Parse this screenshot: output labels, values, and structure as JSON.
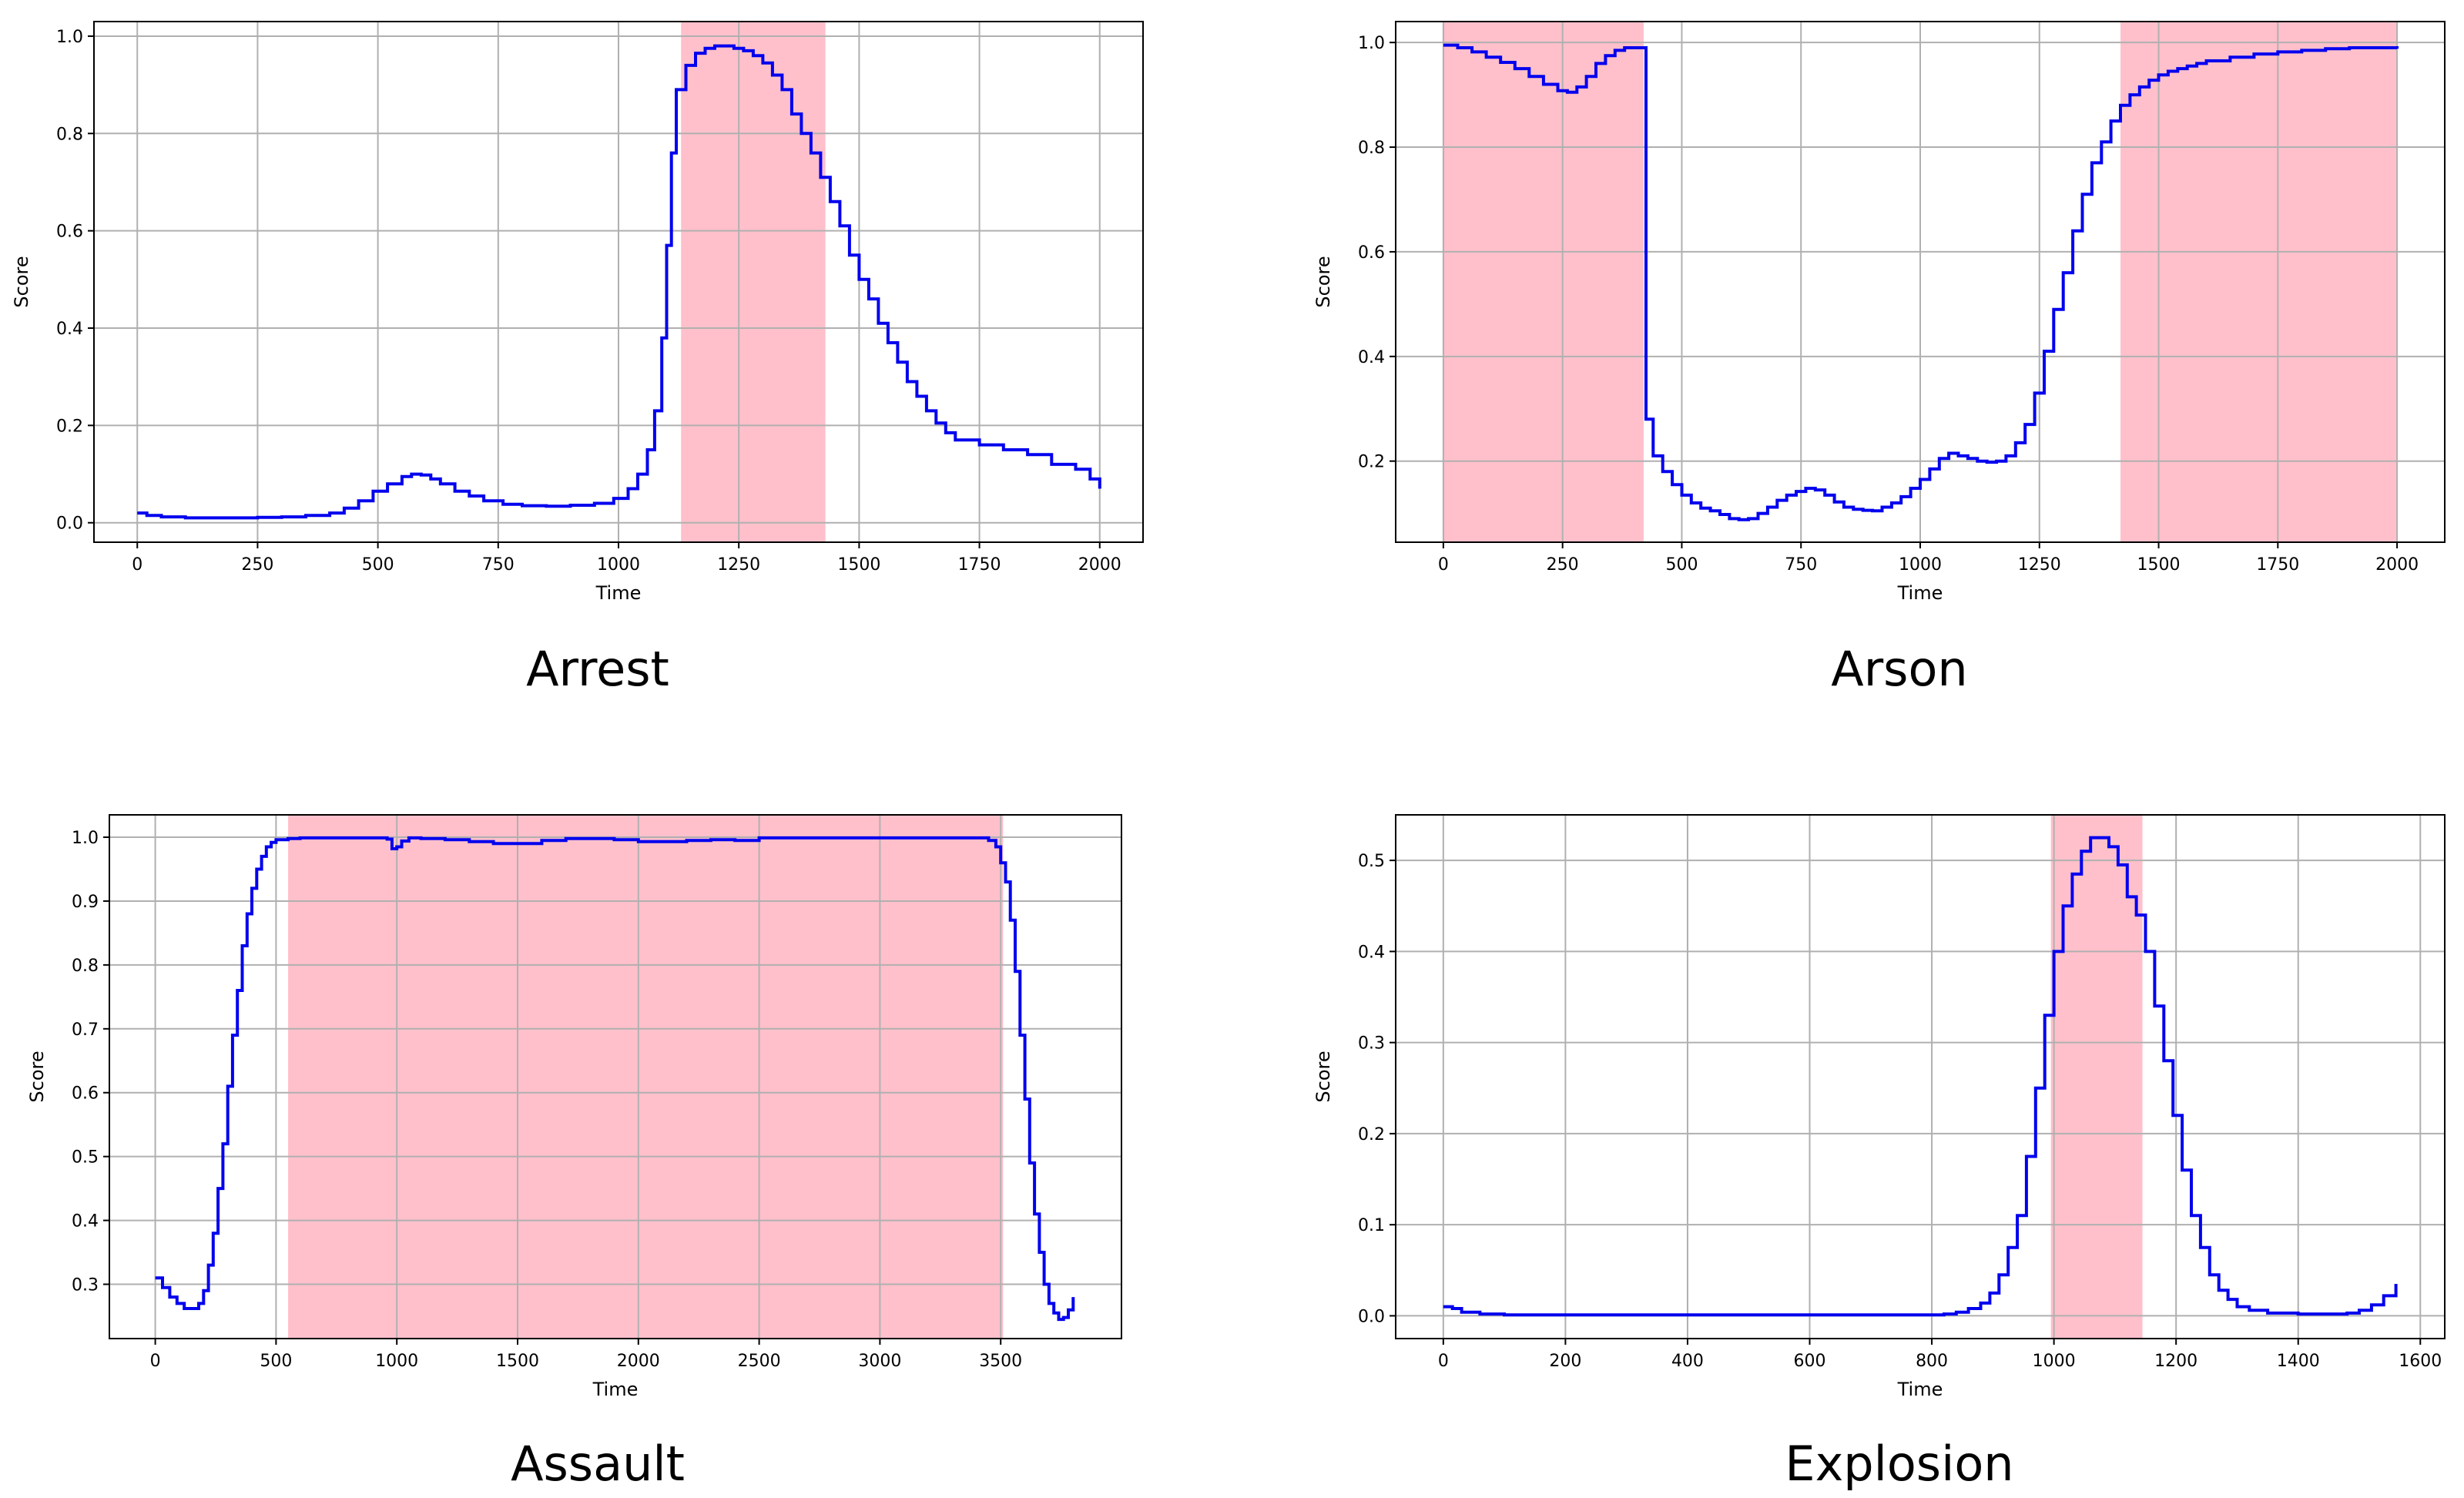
{
  "colors": {
    "line": "#0000ee",
    "shade": "#ffc0cb",
    "grid": "#b0b0b0",
    "axes": "#000000"
  },
  "chart_data": [
    {
      "type": "line",
      "caption": "Arrest",
      "xlabel": "Time",
      "ylabel": "Score",
      "xlim": [
        -90,
        2090
      ],
      "ylim": [
        -0.04,
        1.03
      ],
      "xticks": [
        0,
        250,
        500,
        750,
        1000,
        1250,
        1500,
        1750,
        2000
      ],
      "yticks": [
        0.0,
        0.2,
        0.4,
        0.6,
        0.8,
        1.0
      ],
      "ytick_labels": [
        "0.0",
        "0.2",
        "0.4",
        "0.6",
        "0.8",
        "1.0"
      ],
      "shaded_ranges": [
        [
          1130,
          1430
        ]
      ],
      "grid": true,
      "step": true,
      "series": [
        {
          "x": [
            0,
            20,
            50,
            100,
            150,
            200,
            250,
            300,
            350,
            400,
            430,
            460,
            490,
            520,
            550,
            570,
            590,
            610,
            630,
            660,
            690,
            720,
            760,
            800,
            850,
            900,
            950,
            990,
            1020,
            1040,
            1060,
            1075,
            1090,
            1100,
            1110,
            1120,
            1140,
            1160,
            1180,
            1200,
            1220,
            1240,
            1260,
            1280,
            1300,
            1320,
            1340,
            1360,
            1380,
            1400,
            1420,
            1440,
            1460,
            1480,
            1500,
            1520,
            1540,
            1560,
            1580,
            1600,
            1620,
            1640,
            1660,
            1680,
            1700,
            1750,
            1800,
            1850,
            1900,
            1950,
            1980,
            2000
          ],
          "y": [
            0.02,
            0.015,
            0.012,
            0.01,
            0.01,
            0.01,
            0.011,
            0.012,
            0.015,
            0.02,
            0.03,
            0.045,
            0.065,
            0.08,
            0.095,
            0.1,
            0.098,
            0.09,
            0.08,
            0.065,
            0.055,
            0.045,
            0.038,
            0.035,
            0.034,
            0.036,
            0.04,
            0.05,
            0.07,
            0.1,
            0.15,
            0.23,
            0.38,
            0.57,
            0.76,
            0.89,
            0.94,
            0.965,
            0.975,
            0.98,
            0.98,
            0.975,
            0.97,
            0.96,
            0.945,
            0.92,
            0.89,
            0.84,
            0.8,
            0.76,
            0.71,
            0.66,
            0.61,
            0.55,
            0.5,
            0.46,
            0.41,
            0.37,
            0.33,
            0.29,
            0.26,
            0.23,
            0.205,
            0.185,
            0.17,
            0.16,
            0.15,
            0.14,
            0.12,
            0.11,
            0.09,
            0.07
          ]
        }
      ]
    },
    {
      "type": "line",
      "caption": "Arson",
      "xlabel": "Time",
      "ylabel": "Score",
      "xlim": [
        -100,
        2100
      ],
      "ylim": [
        0.045,
        1.04
      ],
      "xticks": [
        0,
        250,
        500,
        750,
        1000,
        1250,
        1500,
        1750,
        2000
      ],
      "yticks": [
        0.2,
        0.4,
        0.6,
        0.8,
        1.0
      ],
      "ytick_labels": [
        "0.2",
        "0.4",
        "0.6",
        "0.8",
        "1.0"
      ],
      "shaded_ranges": [
        [
          0,
          420
        ],
        [
          1420,
          2000
        ]
      ],
      "grid": true,
      "step": true,
      "series": [
        {
          "x": [
            0,
            30,
            60,
            90,
            120,
            150,
            180,
            210,
            240,
            260,
            280,
            300,
            320,
            340,
            360,
            380,
            400,
            420,
            425,
            440,
            460,
            480,
            500,
            520,
            540,
            560,
            580,
            600,
            620,
            640,
            660,
            680,
            700,
            720,
            740,
            760,
            780,
            800,
            820,
            840,
            860,
            880,
            900,
            920,
            940,
            960,
            980,
            1000,
            1020,
            1040,
            1060,
            1080,
            1100,
            1120,
            1140,
            1160,
            1180,
            1200,
            1220,
            1240,
            1260,
            1280,
            1300,
            1320,
            1340,
            1360,
            1380,
            1400,
            1420,
            1440,
            1460,
            1480,
            1500,
            1520,
            1540,
            1560,
            1580,
            1600,
            1650,
            1700,
            1750,
            1800,
            1850,
            1900,
            1950,
            2000
          ],
          "y": [
            0.995,
            0.99,
            0.982,
            0.972,
            0.962,
            0.95,
            0.935,
            0.92,
            0.908,
            0.905,
            0.915,
            0.935,
            0.96,
            0.975,
            0.985,
            0.99,
            0.99,
            0.99,
            0.28,
            0.21,
            0.18,
            0.155,
            0.135,
            0.12,
            0.11,
            0.105,
            0.098,
            0.09,
            0.088,
            0.09,
            0.1,
            0.112,
            0.125,
            0.135,
            0.142,
            0.148,
            0.145,
            0.135,
            0.122,
            0.112,
            0.108,
            0.106,
            0.105,
            0.112,
            0.12,
            0.132,
            0.148,
            0.165,
            0.185,
            0.205,
            0.215,
            0.21,
            0.205,
            0.2,
            0.198,
            0.2,
            0.21,
            0.235,
            0.27,
            0.33,
            0.41,
            0.49,
            0.56,
            0.64,
            0.71,
            0.77,
            0.81,
            0.85,
            0.88,
            0.9,
            0.915,
            0.928,
            0.938,
            0.945,
            0.95,
            0.955,
            0.96,
            0.965,
            0.972,
            0.978,
            0.982,
            0.985,
            0.988,
            0.99,
            0.99,
            0.988
          ]
        }
      ]
    },
    {
      "type": "line",
      "caption": "Assault",
      "xlabel": "Time",
      "ylabel": "Score",
      "xlim": [
        -190,
        4000
      ],
      "ylim": [
        0.215,
        1.035
      ],
      "xticks": [
        0,
        500,
        1000,
        1500,
        2000,
        2500,
        3000,
        3500
      ],
      "yticks": [
        0.3,
        0.4,
        0.5,
        0.6,
        0.7,
        0.8,
        0.9,
        1.0
      ],
      "ytick_labels": [
        "0.3",
        "0.4",
        "0.5",
        "0.6",
        "0.7",
        "0.8",
        "0.9",
        "1.0"
      ],
      "shaded_ranges": [
        [
          550,
          3510
        ]
      ],
      "grid": true,
      "step": true,
      "series": [
        {
          "x": [
            0,
            30,
            60,
            90,
            120,
            150,
            180,
            200,
            220,
            240,
            260,
            280,
            300,
            320,
            340,
            360,
            380,
            400,
            420,
            440,
            460,
            480,
            500,
            550,
            600,
            700,
            800,
            900,
            960,
            980,
            1000,
            1020,
            1050,
            1100,
            1200,
            1300,
            1400,
            1500,
            1600,
            1700,
            1800,
            1900,
            2000,
            2100,
            2200,
            2300,
            2400,
            2500,
            2700,
            2900,
            3100,
            3300,
            3450,
            3480,
            3500,
            3520,
            3540,
            3560,
            3580,
            3600,
            3620,
            3640,
            3660,
            3680,
            3700,
            3720,
            3740,
            3760,
            3780,
            3800
          ],
          "y": [
            0.31,
            0.295,
            0.28,
            0.27,
            0.262,
            0.262,
            0.27,
            0.29,
            0.33,
            0.38,
            0.45,
            0.52,
            0.61,
            0.69,
            0.76,
            0.83,
            0.88,
            0.92,
            0.95,
            0.97,
            0.985,
            0.992,
            0.996,
            0.998,
            0.999,
            0.999,
            0.999,
            0.999,
            0.997,
            0.982,
            0.985,
            0.994,
            0.999,
            0.998,
            0.996,
            0.993,
            0.99,
            0.99,
            0.995,
            0.998,
            0.998,
            0.996,
            0.993,
            0.993,
            0.995,
            0.996,
            0.995,
            0.999,
            0.999,
            0.999,
            0.999,
            0.999,
            0.995,
            0.985,
            0.96,
            0.93,
            0.87,
            0.79,
            0.69,
            0.59,
            0.49,
            0.41,
            0.35,
            0.3,
            0.27,
            0.255,
            0.245,
            0.248,
            0.26,
            0.28
          ]
        }
      ]
    },
    {
      "type": "line",
      "caption": "Explosion",
      "xlabel": "Time",
      "ylabel": "Score",
      "xlim": [
        -78,
        1640
      ],
      "ylim": [
        -0.025,
        0.55
      ],
      "xticks": [
        0,
        200,
        400,
        600,
        800,
        1000,
        1200,
        1400,
        1600
      ],
      "yticks": [
        0.0,
        0.1,
        0.2,
        0.3,
        0.4,
        0.5
      ],
      "ytick_labels": [
        "0.0",
        "0.1",
        "0.2",
        "0.3",
        "0.4",
        "0.5"
      ],
      "shaded_ranges": [
        [
          995,
          1145
        ]
      ],
      "grid": true,
      "step": true,
      "series": [
        {
          "x": [
            0,
            15,
            30,
            60,
            100,
            200,
            400,
            600,
            780,
            800,
            820,
            840,
            860,
            880,
            895,
            910,
            925,
            940,
            955,
            970,
            985,
            1000,
            1015,
            1030,
            1045,
            1060,
            1075,
            1090,
            1105,
            1120,
            1135,
            1150,
            1165,
            1180,
            1195,
            1210,
            1225,
            1240,
            1255,
            1270,
            1285,
            1300,
            1320,
            1350,
            1400,
            1450,
            1480,
            1500,
            1520,
            1540,
            1560
          ],
          "y": [
            0.01,
            0.008,
            0.004,
            0.002,
            0.001,
            0.001,
            0.001,
            0.001,
            0.001,
            0.001,
            0.002,
            0.004,
            0.008,
            0.014,
            0.025,
            0.045,
            0.075,
            0.11,
            0.175,
            0.25,
            0.33,
            0.4,
            0.45,
            0.485,
            0.51,
            0.525,
            0.525,
            0.515,
            0.495,
            0.46,
            0.44,
            0.4,
            0.34,
            0.28,
            0.22,
            0.16,
            0.11,
            0.075,
            0.045,
            0.028,
            0.018,
            0.01,
            0.006,
            0.003,
            0.002,
            0.002,
            0.003,
            0.006,
            0.012,
            0.022,
            0.035
          ]
        }
      ]
    }
  ]
}
